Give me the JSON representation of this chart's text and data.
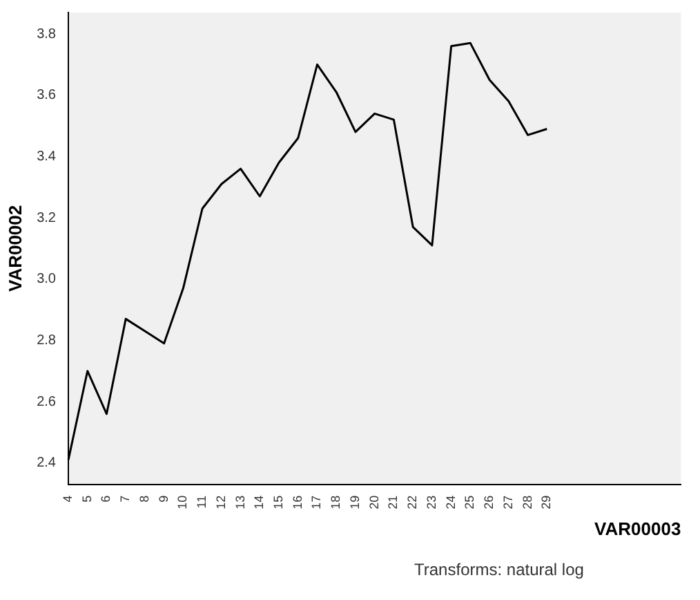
{
  "chart_data": {
    "type": "line",
    "xlabel": "VAR00003",
    "ylabel": "VAR00002",
    "annotations": [
      "Transforms: natural log"
    ],
    "categories": [
      "4",
      "5",
      "6",
      "7",
      "8",
      "9",
      "10",
      "11",
      "12",
      "13",
      "14",
      "15",
      "16",
      "17",
      "18",
      "19",
      "20",
      "21",
      "22",
      "23",
      "24",
      "25",
      "26",
      "27",
      "28",
      "29",
      null,
      null,
      null,
      null,
      null,
      null,
      null
    ],
    "series": [
      {
        "color": "#000000",
        "values": [
          2.41,
          2.7,
          2.56,
          2.87,
          2.83,
          2.79,
          2.97,
          3.23,
          3.31,
          3.36,
          3.27,
          3.38,
          3.46,
          3.7,
          3.61,
          3.48,
          3.54,
          3.52,
          3.17,
          3.11,
          3.76,
          3.77,
          3.65,
          3.58,
          3.47,
          3.49,
          null,
          null,
          null,
          null,
          null,
          null,
          null
        ]
      }
    ],
    "ylim": [
      2.33,
      3.87
    ],
    "yticks": [
      2.4,
      2.6,
      2.8,
      {
        "value": 3,
        "label": "3.0"
      },
      3.2,
      3.4,
      3.6,
      3.8
    ],
    "grid": false,
    "legend": false,
    "marker": "none",
    "line_style": "solid"
  }
}
